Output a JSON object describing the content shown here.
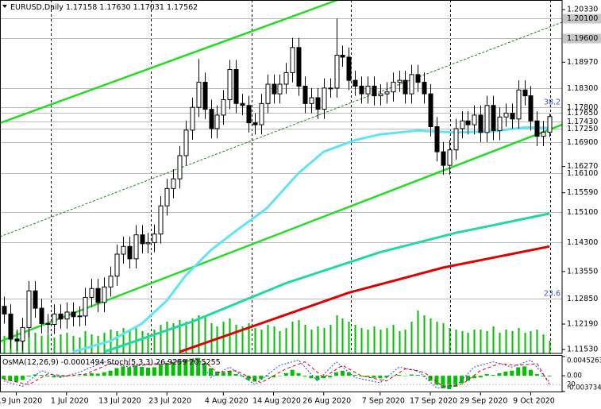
{
  "chart_data": [
    {
      "type": "candlestick",
      "symbol": "EURUSD,Daily",
      "ohlc_text": [
        "1.17158",
        "1.17630",
        "1.17031",
        "1.17562"
      ],
      "xlim": [
        -0.6,
        89
      ],
      "xticks": [
        {
          "value": 2,
          "label": "19 Jun 2020"
        },
        {
          "value": 10,
          "label": "1 Jul 2020"
        },
        {
          "value": 18,
          "label": "13 Jul 2020"
        },
        {
          "value": 26,
          "label": "23 Jul 2020"
        },
        {
          "value": 35,
          "label": "4 Aug 2020"
        },
        {
          "value": 43,
          "label": "14 Aug 2020"
        },
        {
          "value": 51,
          "label": "26 Aug 2020"
        },
        {
          "value": 60,
          "label": "7 Sep 2020"
        },
        {
          "value": 68,
          "label": "17 Sep 2020"
        },
        {
          "value": 76,
          "label": "29 Sep 2020"
        },
        {
          "value": 84,
          "label": "9 Oct 2020"
        }
      ],
      "ylim": [
        1.1143,
        1.2058
      ],
      "yticks": [
        {
          "value": 1.2033,
          "label": "1.20330"
        },
        {
          "value": 1.1897,
          "label": "1.18970"
        },
        {
          "value": 1.1627,
          "label": "1.16270"
        },
        {
          "value": 1.1559,
          "label": "1.15590"
        },
        {
          "value": 1.1355,
          "label": "1.13550"
        },
        {
          "value": 1.1219,
          "label": "1.12190"
        },
        {
          "value": 1.1153,
          "label": "1.11530"
        }
      ],
      "levels": [
        {
          "value": 1.201,
          "label": "1.20100",
          "boxed": true
        },
        {
          "value": 1.196,
          "label": "1.19600",
          "boxed": true
        },
        {
          "value": 1.183,
          "label": "1.18300"
        },
        {
          "value": 1.178,
          "label": "1.17800"
        },
        {
          "value": 1.1765,
          "label": "1.17650"
        },
        {
          "value": 1.1743,
          "label": "1.17430"
        },
        {
          "value": 1.1725,
          "label": "1.17250"
        },
        {
          "value": 1.169,
          "label": "1.16900"
        },
        {
          "value": 1.161,
          "label": "1.16100"
        },
        {
          "value": 1.151,
          "label": "1.15100"
        },
        {
          "value": 1.143,
          "label": "1.14300"
        },
        {
          "value": 1.1285,
          "label": "1.12850"
        }
      ],
      "annotations": [
        {
          "text": "38.2",
          "y": 1.178
        },
        {
          "text": "23.6",
          "y": 1.1285
        }
      ],
      "open": [
        1.1265,
        1.1245,
        1.118,
        1.1175,
        1.121,
        1.1305,
        1.126,
        1.122,
        1.1218,
        1.1245,
        1.1232,
        1.125,
        1.1238,
        1.124,
        1.1288,
        1.1311,
        1.1275,
        1.1315,
        1.1343,
        1.14,
        1.142,
        1.1388,
        1.145,
        1.1427,
        1.143,
        1.1452,
        1.1525,
        1.157,
        1.1595,
        1.1655,
        1.1721,
        1.178,
        1.1845,
        1.1775,
        1.1725,
        1.176,
        1.18,
        1.1878,
        1.179,
        1.1785,
        1.174,
        1.1735,
        1.179,
        1.184,
        1.1815,
        1.184,
        1.187,
        1.1935,
        1.1835,
        1.179,
        1.1805,
        1.1775,
        1.183,
        1.183,
        1.1915,
        1.191,
        1.185,
        1.1835,
        1.1815,
        1.1835,
        1.181,
        1.1815,
        1.182,
        1.1845,
        1.185,
        1.1815,
        1.1865,
        1.1845,
        1.1815,
        1.173,
        1.1665,
        1.163,
        1.167,
        1.1725,
        1.1745,
        1.1735,
        1.176,
        1.1715,
        1.1785,
        1.172,
        1.1755,
        1.1765,
        1.175,
        1.1825,
        1.181,
        1.1745,
        1.1705,
        1.17158
      ],
      "high": [
        1.129,
        1.127,
        1.1205,
        1.1235,
        1.133,
        1.133,
        1.1285,
        1.1245,
        1.127,
        1.127,
        1.1275,
        1.1275,
        1.1265,
        1.1313,
        1.1336,
        1.1336,
        1.134,
        1.1368,
        1.1425,
        1.1445,
        1.1445,
        1.1475,
        1.1475,
        1.1455,
        1.1477,
        1.155,
        1.1595,
        1.162,
        1.168,
        1.1746,
        1.1805,
        1.1905,
        1.187,
        1.18,
        1.1785,
        1.1825,
        1.1903,
        1.1903,
        1.1815,
        1.181,
        1.1765,
        1.1815,
        1.1865,
        1.1865,
        1.1865,
        1.1895,
        1.196,
        1.196,
        1.186,
        1.183,
        1.183,
        1.1855,
        1.1855,
        1.201,
        1.194,
        1.1935,
        1.1875,
        1.186,
        1.186,
        1.186,
        1.184,
        1.1845,
        1.187,
        1.1875,
        1.1875,
        1.189,
        1.189,
        1.187,
        1.184,
        1.1755,
        1.169,
        1.1695,
        1.175,
        1.177,
        1.177,
        1.1785,
        1.1785,
        1.181,
        1.181,
        1.178,
        1.179,
        1.179,
        1.185,
        1.185,
        1.1835,
        1.177,
        1.1745,
        1.1763
      ],
      "low": [
        1.122,
        1.1155,
        1.115,
        1.115,
        1.1185,
        1.1235,
        1.1195,
        1.1193,
        1.1193,
        1.1207,
        1.1207,
        1.1213,
        1.1213,
        1.1215,
        1.1263,
        1.125,
        1.125,
        1.129,
        1.1318,
        1.1375,
        1.1363,
        1.1363,
        1.1402,
        1.1402,
        1.1405,
        1.1427,
        1.15,
        1.1545,
        1.157,
        1.163,
        1.1696,
        1.1755,
        1.175,
        1.17,
        1.17,
        1.1735,
        1.1775,
        1.1765,
        1.176,
        1.1715,
        1.171,
        1.171,
        1.1765,
        1.179,
        1.179,
        1.1815,
        1.1845,
        1.181,
        1.1765,
        1.1765,
        1.175,
        1.175,
        1.1805,
        1.1805,
        1.1885,
        1.1825,
        1.181,
        1.179,
        1.179,
        1.1785,
        1.1785,
        1.179,
        1.1795,
        1.182,
        1.179,
        1.179,
        1.182,
        1.179,
        1.1705,
        1.164,
        1.1605,
        1.1605,
        1.1645,
        1.17,
        1.171,
        1.171,
        1.169,
        1.169,
        1.1695,
        1.1695,
        1.173,
        1.1725,
        1.1725,
        1.1785,
        1.172,
        1.168,
        1.168,
        1.17031
      ],
      "close": [
        1.1245,
        1.118,
        1.1175,
        1.121,
        1.1305,
        1.126,
        1.122,
        1.1218,
        1.1245,
        1.1232,
        1.125,
        1.1238,
        1.124,
        1.1288,
        1.1311,
        1.1275,
        1.1315,
        1.1343,
        1.14,
        1.142,
        1.1388,
        1.145,
        1.1427,
        1.143,
        1.1452,
        1.1525,
        1.157,
        1.1595,
        1.1655,
        1.1721,
        1.178,
        1.1845,
        1.1775,
        1.1725,
        1.176,
        1.18,
        1.1878,
        1.179,
        1.1785,
        1.174,
        1.1735,
        1.179,
        1.184,
        1.1815,
        1.184,
        1.187,
        1.1935,
        1.1835,
        1.179,
        1.1805,
        1.1775,
        1.183,
        1.183,
        1.1915,
        1.191,
        1.185,
        1.1835,
        1.1815,
        1.1835,
        1.181,
        1.1815,
        1.182,
        1.1845,
        1.185,
        1.1815,
        1.1865,
        1.1845,
        1.1815,
        1.173,
        1.1665,
        1.163,
        1.167,
        1.1725,
        1.1745,
        1.1735,
        1.176,
        1.1715,
        1.1785,
        1.172,
        1.1755,
        1.1765,
        1.175,
        1.1825,
        1.181,
        1.1745,
        1.1705,
        1.17158,
        1.17562
      ],
      "volume": [
        22,
        30,
        28,
        25,
        30,
        26,
        22,
        24,
        20,
        24,
        26,
        22,
        20,
        28,
        24,
        22,
        26,
        30,
        28,
        32,
        30,
        34,
        28,
        26,
        30,
        36,
        40,
        38,
        42,
        40,
        44,
        48,
        46,
        38,
        34,
        40,
        44,
        36,
        34,
        38,
        32,
        30,
        36,
        34,
        28,
        32,
        40,
        42,
        36,
        30,
        34,
        32,
        36,
        48,
        44,
        40,
        36,
        32,
        30,
        34,
        30,
        32,
        36,
        28,
        30,
        40,
        54,
        48,
        44,
        40,
        38,
        32,
        30,
        28,
        26,
        30,
        30,
        28,
        34,
        26,
        30,
        28,
        32,
        26,
        28,
        30,
        24,
        16
      ],
      "volume_color": "#00c000",
      "up_color": "#ffffff",
      "down_color": "#000000",
      "series": [
        {
          "color": "#5fe3f7",
          "width": 3,
          "x": [
            11,
            17,
            22,
            26,
            29,
            33,
            37,
            42,
            47,
            51,
            56,
            60,
            66,
            68,
            72,
            78,
            83,
            87
          ],
          "values": [
            1.1147,
            1.1175,
            1.122,
            1.128,
            1.1345,
            1.141,
            1.146,
            1.152,
            1.161,
            1.1665,
            1.1695,
            1.171,
            1.172,
            1.1718,
            1.1715,
            1.1718,
            1.1728,
            1.1727
          ]
        },
        {
          "color": "#1fd8a4",
          "width": 3,
          "x": [
            16,
            30,
            45,
            60,
            72,
            87
          ],
          "values": [
            1.1147,
            1.1225,
            1.1325,
            1.1405,
            1.1455,
            1.1505
          ]
        },
        {
          "color": "#e00000",
          "width": 3,
          "x": [
            28,
            40,
            55,
            70,
            87
          ],
          "values": [
            1.1147,
            1.1215,
            1.13,
            1.1365,
            1.142
          ]
        }
      ]
    },
    {
      "type": "oscillator",
      "osma_label": "OsMA(12,26,9) -0.0001494",
      "stoch_label": "Stoch(5,3,3) 26.9259 20.5255",
      "ylim": [
        -0.003734,
        0.0045263
      ],
      "yticks": [
        0.0045263,
        {
          "value": 0,
          "label": "0.00"
        },
        {
          "value": -0.003734,
          "label": "-0.0037340"
        }
      ],
      "y2lim": [
        0,
        100
      ],
      "y2ticks": [
        20
      ],
      "color": "#00c000",
      "values": [
        -0.0008,
        -0.0012,
        -0.0014,
        -0.001,
        -0.0002,
        0.0003,
        0.0002,
        -0.0002,
        -0.0004,
        -0.0003,
        -0.0002,
        -0.0001,
        0,
        0.0003,
        0.0006,
        0.0005,
        0.0008,
        0.0012,
        0.0018,
        0.0022,
        0.002,
        0.0024,
        0.0021,
        0.0019,
        0.002,
        0.0026,
        0.003,
        0.0032,
        0.0035,
        0.0038,
        0.004,
        0.0042,
        0.003,
        0.0018,
        0.001,
        0.0008,
        0.0012,
        0.0004,
        -0.0002,
        -0.001,
        -0.0014,
        -0.0008,
        -0.0002,
        -0.0004,
        0,
        0.0006,
        0.0014,
        0.0006,
        -0.0002,
        -0.0006,
        -0.001,
        -0.0006,
        -0.0004,
        0.0008,
        0.0012,
        0.0008,
        0.0002,
        -0.0002,
        -0.0003,
        -0.0005,
        -0.0006,
        -0.0004,
        -0.0001,
        0.0002,
        0,
        0.0003,
        0.0002,
        -0.0002,
        -0.0012,
        -0.0022,
        -0.003,
        -0.0032,
        -0.0026,
        -0.0018,
        -0.0012,
        -0.0006,
        -0.0004,
        0.0004,
        0.0002,
        0.0006,
        0.001,
        0.0012,
        0.002,
        0.0022,
        0.0014,
        0.0004,
        -0.0002,
        -0.0001494
      ],
      "series": [
        {
          "color": "#2040ff",
          "dash": "2,2",
          "axis": "y2",
          "x": [
            0,
            3,
            6,
            9,
            12,
            16,
            20,
            24,
            28,
            31,
            33,
            36,
            40,
            44,
            47,
            50,
            53,
            56,
            60,
            63,
            66,
            69,
            72,
            75,
            78,
            81,
            84,
            87
          ],
          "values": [
            30,
            15,
            60,
            40,
            55,
            85,
            70,
            80,
            90,
            95,
            40,
            70,
            20,
            75,
            90,
            30,
            85,
            40,
            25,
            70,
            60,
            10,
            15,
            70,
            85,
            70,
            90,
            26.9259
          ]
        },
        {
          "color": "#e00000",
          "dash": "4,3",
          "axis": "y2",
          "x": [
            0,
            4,
            7,
            10,
            13,
            17,
            21,
            25,
            29,
            32,
            34,
            37,
            41,
            45,
            48,
            51,
            54,
            57,
            61,
            64,
            67,
            70,
            73,
            76,
            79,
            82,
            85,
            87
          ],
          "values": [
            35,
            20,
            50,
            45,
            50,
            80,
            75,
            78,
            88,
            85,
            55,
            60,
            25,
            65,
            85,
            40,
            75,
            45,
            30,
            65,
            55,
            15,
            20,
            60,
            80,
            75,
            80,
            20.5255
          ]
        }
      ]
    }
  ]
}
